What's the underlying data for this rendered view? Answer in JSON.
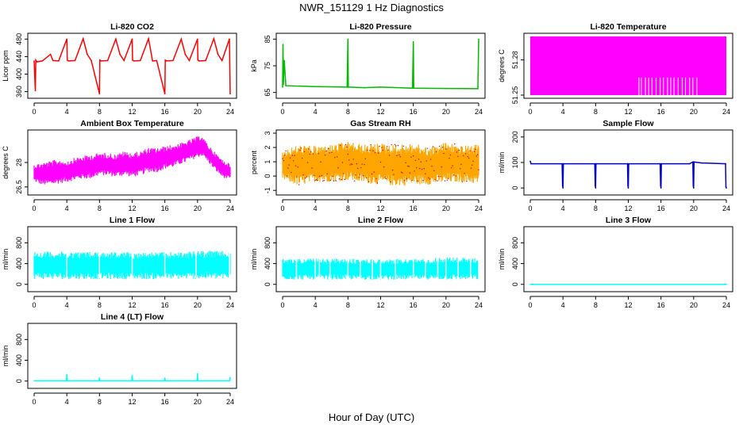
{
  "figure": {
    "title": "NWR_151129  1 Hz Diagnostics",
    "xlabel": "Hour of Day (UTC)"
  },
  "chart_data": [
    {
      "type": "line",
      "title": "Li-820 CO2",
      "ylabel": "Licor ppm",
      "color": "#ff0000",
      "xlim": [
        0,
        24
      ],
      "xticks": [
        0,
        4,
        8,
        12,
        16,
        20,
        24
      ],
      "ylim": [
        352,
        486
      ],
      "yticks": [
        360,
        400,
        440,
        480
      ],
      "series": [
        {
          "x": [
            0,
            0.15,
            0.2,
            0.35,
            1.0,
            2.0,
            2.3,
            3.0,
            4.0,
            4.05,
            4.2,
            5.0,
            6.0,
            6.5,
            7.0,
            8.0,
            8.05,
            8.2,
            9.0,
            10.0,
            10.5,
            11.0,
            12.0,
            12.05,
            12.2,
            13.0,
            14.0,
            14.5,
            15.0,
            16.0,
            16.05,
            16.2,
            17.0,
            18.0,
            18.5,
            19.0,
            20.0,
            20.05,
            20.2,
            21.0,
            22.0,
            22.5,
            23.0,
            23.9,
            24.0
          ],
          "y": [
            430,
            362,
            432,
            428,
            430,
            445,
            431,
            430,
            480,
            432,
            430,
            431,
            481,
            445,
            431,
            355,
            432,
            430,
            431,
            480,
            445,
            431,
            480,
            432,
            430,
            431,
            481,
            430,
            431,
            355,
            432,
            430,
            431,
            480,
            445,
            431,
            480,
            432,
            430,
            431,
            481,
            445,
            431,
            480,
            355
          ]
        }
      ]
    },
    {
      "type": "line",
      "title": "Li-820 Pressure",
      "ylabel": "kPa",
      "color": "#00bb00",
      "xlim": [
        0,
        24
      ],
      "xticks": [
        0,
        4,
        8,
        12,
        16,
        20,
        24
      ],
      "ylim": [
        64,
        86
      ],
      "yticks": [
        65,
        75,
        85
      ],
      "series": [
        {
          "x": [
            0,
            0.05,
            0.1,
            0.2,
            0.4,
            4.0,
            7.9,
            8.0,
            8.05,
            10.0,
            12.0,
            15.9,
            16.0,
            16.05,
            20.0,
            23.9,
            24.0
          ],
          "y": [
            67,
            83,
            68,
            77,
            67.5,
            67.2,
            67.0,
            85,
            67.0,
            66.8,
            67.0,
            66.6,
            84,
            66.6,
            66.5,
            66.4,
            85
          ]
        }
      ]
    },
    {
      "type": "area",
      "title": "Li-820 Temperature",
      "ylabel": "degrees C",
      "color": "#ff00ff",
      "xlim": [
        0,
        24
      ],
      "xticks": [
        0,
        4,
        8,
        12,
        16,
        20,
        24
      ],
      "ylim": [
        51.25,
        51.3
      ],
      "yticks": [
        51.25,
        51.28
      ],
      "fill_range": [
        [
          0,
          51.25,
          51.3
        ],
        [
          24,
          51.25,
          51.3
        ]
      ],
      "gaps_x": [
        13.3,
        13.6,
        14.1,
        14.5,
        14.9,
        15.4,
        15.9,
        16.3,
        16.8,
        17.2,
        17.6,
        18.1,
        18.6,
        19.0,
        19.5,
        19.9,
        20.4
      ]
    },
    {
      "type": "area",
      "title": "Ambient Box Temperature",
      "ylabel": "degrees C",
      "color": "#ff00ff",
      "xlim": [
        0,
        24
      ],
      "xticks": [
        0,
        4,
        8,
        12,
        16,
        20,
        24
      ],
      "ylim": [
        26.2,
        29.8
      ],
      "yticks": [
        26.5,
        28.0
      ],
      "series": [
        {
          "x": [
            0,
            1,
            2,
            3,
            4,
            5,
            6,
            7,
            8,
            9,
            10,
            11,
            12,
            13,
            14,
            15,
            16,
            17,
            18,
            19,
            20,
            20.5,
            21,
            22,
            23,
            24
          ],
          "low": [
            26.8,
            26.6,
            26.6,
            26.7,
            26.8,
            26.9,
            27.0,
            27.0,
            27.2,
            27.2,
            27.1,
            27.2,
            27.1,
            27.2,
            27.4,
            27.4,
            27.6,
            27.7,
            27.9,
            28.1,
            28.3,
            28.4,
            28.2,
            27.6,
            27.1,
            26.9
          ],
          "high": [
            27.9,
            28.0,
            28.1,
            28.2,
            28.1,
            28.3,
            28.4,
            28.5,
            28.6,
            28.6,
            28.5,
            28.7,
            28.6,
            28.7,
            28.9,
            28.9,
            29.0,
            29.1,
            29.2,
            29.4,
            29.6,
            29.7,
            29.3,
            28.7,
            28.2,
            27.9
          ]
        }
      ]
    },
    {
      "type": "area",
      "title": "Gas Stream RH",
      "ylabel": "percent",
      "color": "#ffa500",
      "color2": "#cc0000",
      "xlim": [
        0,
        24
      ],
      "xticks": [
        0,
        4,
        8,
        12,
        16,
        20,
        24
      ],
      "ylim": [
        -1.1,
        3.0
      ],
      "yticks": [
        -1,
        0,
        1,
        2,
        3
      ],
      "series": [
        {
          "x": [
            0,
            2,
            4,
            6,
            8,
            10,
            12,
            14,
            16,
            18,
            20,
            22,
            24
          ],
          "low": [
            -0.3,
            -0.7,
            -0.4,
            -0.4,
            -0.3,
            -0.5,
            -0.6,
            -0.7,
            -0.6,
            -0.6,
            -0.5,
            -0.4,
            -0.6
          ],
          "high": [
            1.8,
            2.2,
            2.1,
            2.2,
            2.4,
            2.2,
            2.3,
            2.2,
            2.3,
            2.0,
            2.4,
            2.1,
            2.2
          ]
        }
      ]
    },
    {
      "type": "line",
      "title": "Sample Flow",
      "ylabel": "ml/min",
      "color": "#0000cc",
      "xlim": [
        0,
        24
      ],
      "xticks": [
        0,
        4,
        8,
        12,
        16,
        20,
        24
      ],
      "ylim": [
        -15,
        215
      ],
      "yticks": [
        0,
        100,
        200
      ],
      "series": [
        {
          "x": [
            0,
            0.1,
            3.9,
            3.95,
            4.0,
            4.05,
            7.9,
            7.95,
            8.0,
            8.05,
            11.9,
            11.95,
            12.0,
            12.05,
            15.9,
            15.95,
            16.0,
            16.05,
            19.5,
            19.9,
            19.95,
            20.0,
            20.05,
            21,
            23.9,
            23.95,
            24.0
          ],
          "y": [
            105,
            95,
            95,
            10,
            0,
            95,
            95,
            10,
            0,
            95,
            95,
            10,
            0,
            95,
            95,
            10,
            0,
            95,
            95,
            102,
            10,
            0,
            102,
            98,
            95,
            5,
            0
          ]
        }
      ]
    },
    {
      "type": "area",
      "title": "Line 1 Flow",
      "ylabel": "ml/min",
      "color": "#00ffff",
      "xlim": [
        0,
        24
      ],
      "xticks": [
        0,
        4,
        8,
        12,
        16,
        20,
        24
      ],
      "ylim": [
        -80,
        1050
      ],
      "yticks": [
        0,
        400,
        800
      ],
      "series": [
        {
          "x": [
            0,
            4,
            8,
            12,
            16,
            19,
            20,
            24
          ],
          "low": [
            100,
            100,
            100,
            100,
            100,
            100,
            100,
            100
          ],
          "high": [
            640,
            630,
            630,
            620,
            620,
            630,
            650,
            640
          ]
        }
      ],
      "gaps_x": [
        4.0,
        8.0,
        12.0,
        16.0,
        19.8,
        23.9
      ]
    },
    {
      "type": "area",
      "title": "Line 2 Flow",
      "ylabel": "ml/min",
      "color": "#00ffff",
      "xlim": [
        0,
        24
      ],
      "xticks": [
        0,
        4,
        8,
        12,
        16,
        20,
        24
      ],
      "ylim": [
        -80,
        1050
      ],
      "yticks": [
        0,
        400,
        800
      ],
      "series": [
        {
          "x": [
            0,
            4,
            8,
            12,
            16,
            18,
            20,
            24
          ],
          "low": [
            90,
            90,
            90,
            90,
            90,
            90,
            90,
            90
          ],
          "high": [
            490,
            500,
            490,
            490,
            490,
            500,
            530,
            510
          ]
        }
      ],
      "gaps_x": [
        1.7,
        4.0,
        4.5,
        5.8,
        8.0,
        9.5,
        11.0,
        12.0,
        13.8,
        16.0,
        17.5,
        19.0,
        20.0,
        21.5,
        23.0,
        24.0
      ]
    },
    {
      "type": "line",
      "title": "Line 3 Flow",
      "ylabel": "ml/min",
      "color": "#00ffff",
      "xlim": [
        0,
        24
      ],
      "xticks": [
        0,
        4,
        8,
        12,
        16,
        20,
        24
      ],
      "ylim": [
        -80,
        1050
      ],
      "yticks": [
        0,
        400,
        800
      ],
      "series": [
        {
          "x": [
            0,
            24
          ],
          "y": [
            0,
            0
          ]
        }
      ]
    },
    {
      "type": "line",
      "title": "Line 4 (LT) Flow",
      "ylabel": "ml/min",
      "color": "#00ffff",
      "xlim": [
        0,
        24
      ],
      "xticks": [
        0,
        4,
        8,
        12,
        16,
        20,
        24
      ],
      "ylim": [
        -80,
        1050
      ],
      "yticks": [
        0,
        400,
        800
      ],
      "series": [
        {
          "x": [
            0,
            3.95,
            4.0,
            4.05,
            7.95,
            8.0,
            8.05,
            11.95,
            12.0,
            12.05,
            15.95,
            16.0,
            16.05,
            19.95,
            20.0,
            20.05,
            23.95,
            24.0
          ],
          "y": [
            5,
            5,
            130,
            5,
            5,
            60,
            5,
            5,
            110,
            5,
            5,
            60,
            5,
            5,
            140,
            5,
            5,
            70
          ]
        }
      ]
    }
  ]
}
